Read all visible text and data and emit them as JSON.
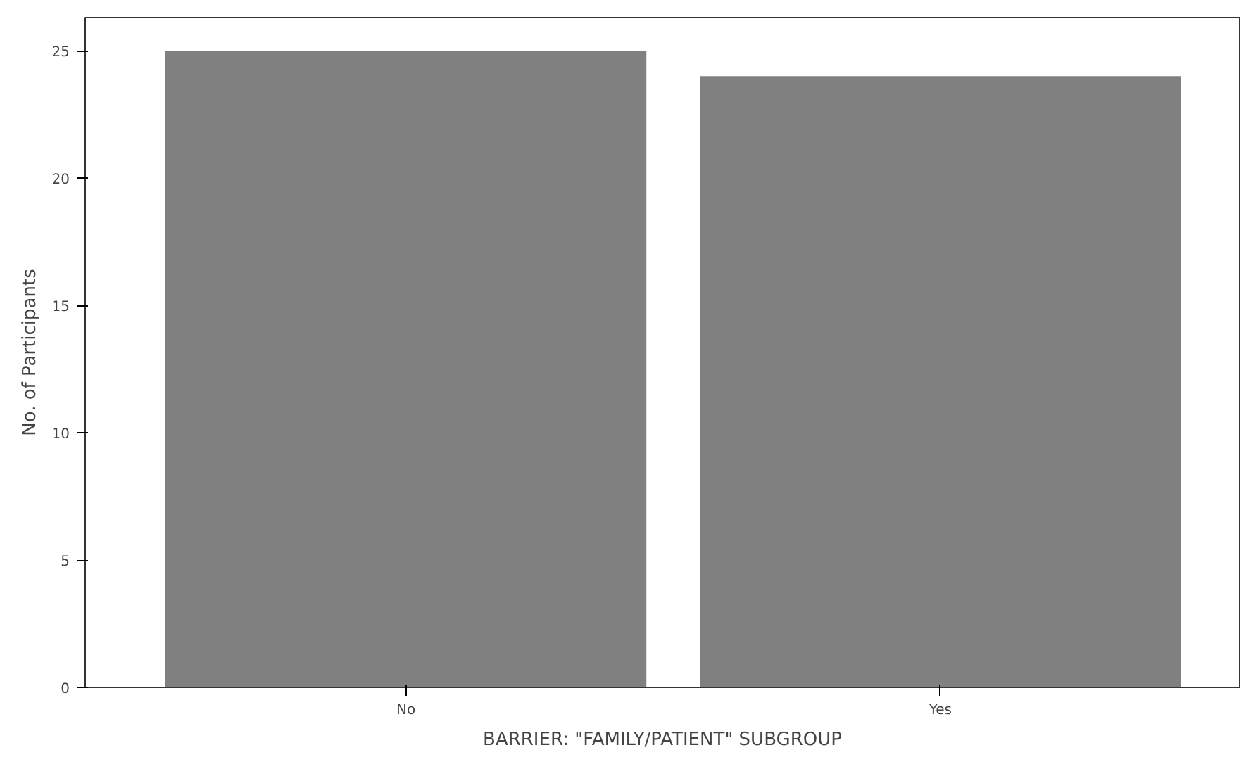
{
  "chart_data": {
    "type": "bar",
    "xlabel": "BARRIER: \"FAMILY/PATIENT\" SUBGROUP",
    "ylabel": "No. of Participants",
    "categories": [
      "No",
      "Yes"
    ],
    "values": [
      25,
      24
    ],
    "color": "#808080",
    "ylim": [
      0,
      26.3
    ],
    "yticks": [
      0,
      5,
      10,
      15,
      20,
      25
    ],
    "grid": false
  }
}
